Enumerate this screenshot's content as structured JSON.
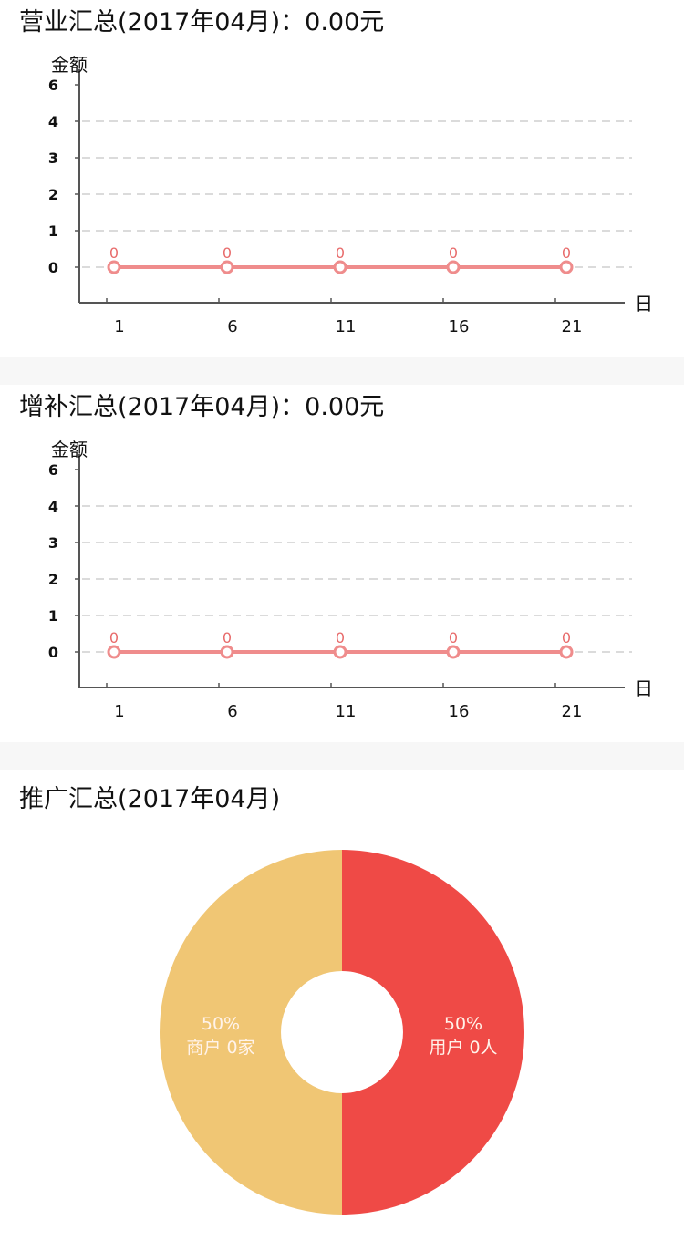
{
  "charts": [
    {
      "id": "business",
      "title_prefix": "营业汇总(2017年04月)：",
      "total": "0.00",
      "unit": "元",
      "chart_data": {
        "type": "line",
        "ylabel": "金额",
        "xlabel": "日",
        "ylim": [
          0,
          6
        ],
        "y_ticks": [
          0,
          1,
          2,
          3,
          4,
          6
        ],
        "x_ticks": [
          1,
          6,
          11,
          16,
          21
        ],
        "series": [
          {
            "x": [
              1,
              6,
              11,
              16,
              21
            ],
            "values": [
              0,
              0,
              0,
              0,
              0
            ]
          }
        ],
        "grid": "dashed-horizontal",
        "line_color": "#ef8c8c"
      }
    },
    {
      "id": "supplement",
      "title_prefix": "增补汇总(2017年04月)：",
      "total": "0.00",
      "unit": "元",
      "chart_data": {
        "type": "line",
        "ylabel": "金额",
        "xlabel": "日",
        "ylim": [
          0,
          6
        ],
        "y_ticks": [
          0,
          1,
          2,
          3,
          4,
          6
        ],
        "x_ticks": [
          1,
          6,
          11,
          16,
          21
        ],
        "series": [
          {
            "x": [
              1,
              6,
              11,
              16,
              21
            ],
            "values": [
              0,
              0,
              0,
              0,
              0
            ]
          }
        ],
        "grid": "dashed-horizontal",
        "line_color": "#ef8c8c"
      }
    }
  ],
  "promotion": {
    "title": "推广汇总(2017年04月)",
    "chart_data": {
      "type": "pie",
      "donut": true,
      "slices": [
        {
          "label": "用户",
          "percent": "50%",
          "value": 0,
          "unit": "人",
          "share": 0.5,
          "color": "#ef4a46"
        },
        {
          "label": "商户",
          "percent": "50%",
          "value": 0,
          "unit": "家",
          "share": 0.5,
          "color": "#f0c674"
        }
      ]
    }
  }
}
